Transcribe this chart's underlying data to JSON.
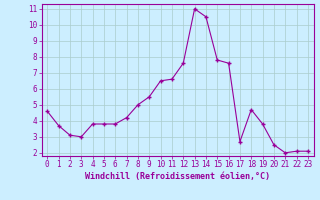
{
  "x": [
    0,
    1,
    2,
    3,
    4,
    5,
    6,
    7,
    8,
    9,
    10,
    11,
    12,
    13,
    14,
    15,
    16,
    17,
    18,
    19,
    20,
    21,
    22,
    23
  ],
  "y": [
    4.6,
    3.7,
    3.1,
    3.0,
    3.8,
    3.8,
    3.8,
    4.2,
    5.0,
    5.5,
    6.5,
    6.6,
    7.6,
    11.0,
    10.5,
    7.8,
    7.6,
    2.7,
    4.7,
    3.8,
    2.5,
    2.0,
    2.1,
    2.1
  ],
  "line_color": "#990099",
  "marker": "+",
  "marker_size": 3,
  "line_width": 0.8,
  "bg_color": "#cceeff",
  "grid_color": "#aacccc",
  "xlabel": "Windchill (Refroidissement éolien,°C)",
  "xlabel_color": "#990099",
  "tick_color": "#990099",
  "spine_color": "#990099",
  "ylim": [
    1.8,
    11.3
  ],
  "xlim": [
    -0.5,
    23.5
  ],
  "yticks": [
    2,
    3,
    4,
    5,
    6,
    7,
    8,
    9,
    10,
    11
  ],
  "xticks": [
    0,
    1,
    2,
    3,
    4,
    5,
    6,
    7,
    8,
    9,
    10,
    11,
    12,
    13,
    14,
    15,
    16,
    17,
    18,
    19,
    20,
    21,
    22,
    23
  ],
  "tick_fontsize": 5.5,
  "xlabel_fontsize": 6,
  "markeredgewidth": 1.0
}
